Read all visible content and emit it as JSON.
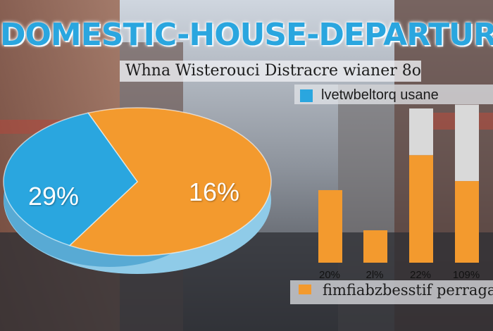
{
  "title": "DOMESTIC-HOUSE-DEPARTURE",
  "subtitle": "Whna Wisterouci Distracre wianer 8o",
  "colors": {
    "pie_orange": "#f39a2e",
    "pie_blue": "#2aa6df",
    "bar_orange": "#f39a2e",
    "bar_gray": "#d9d9d9"
  },
  "chart_data": [
    {
      "type": "pie",
      "slices": [
        {
          "label": "29%",
          "value": 29,
          "color": "#f39a2e"
        },
        {
          "label": "16%",
          "value": 16,
          "color": "#2aa6df"
        }
      ]
    },
    {
      "type": "bar",
      "categories": [
        "20%",
        "2l%",
        "22%",
        "109%"
      ],
      "series": [
        {
          "name": "fimfiabzbesstif perragan",
          "values": [
            56,
            25,
            83,
            63
          ],
          "color": "#f39a2e"
        },
        {
          "values": [
            0,
            0,
            36,
            59
          ],
          "color": "#d9d9d9"
        }
      ],
      "legend": [
        {
          "text": "lvetwbeltorq usane",
          "color": "#2aa6df"
        },
        {
          "text": "fimfiabzbesstif perragan",
          "color": "#f39a2e"
        }
      ],
      "ylim": [
        0,
        125
      ],
      "grid": false
    }
  ]
}
